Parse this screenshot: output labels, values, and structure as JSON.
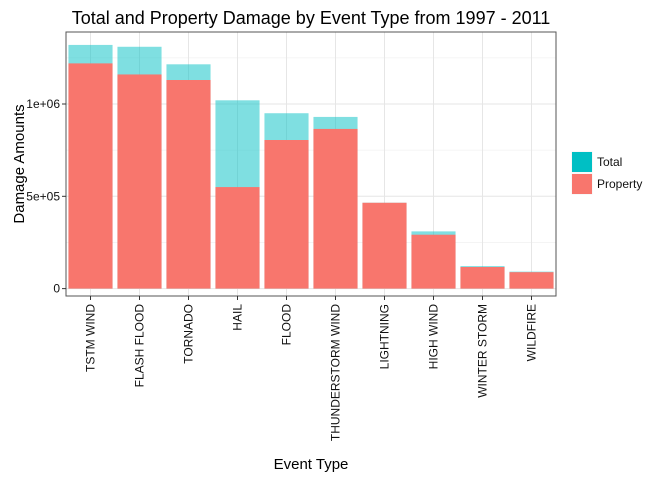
{
  "chart_data": {
    "type": "bar",
    "title": "Total and Property Damage by Event Type from 1997 - 2011",
    "xlabel": "Event Type",
    "ylabel": "Damage Amounts",
    "categories": [
      "TSTM WIND",
      "FLASH FLOOD",
      "TORNADO",
      "HAIL",
      "FLOOD",
      "THUNDERSTORM WIND",
      "LIGHTNING",
      "HIGH WIND",
      "WINTER STORM",
      "WILDFIRE"
    ],
    "series": [
      {
        "name": "Total",
        "color": "#00BFC4",
        "opacity": 0.5,
        "values": [
          1320000,
          1310000,
          1215000,
          1020000,
          950000,
          930000,
          465000,
          310000,
          122000,
          92000
        ]
      },
      {
        "name": "Property",
        "color": "#F8766D",
        "opacity": 1,
        "values": [
          1220000,
          1160000,
          1130000,
          550000,
          805000,
          865000,
          465000,
          292000,
          117000,
          89000
        ]
      }
    ],
    "ylim": [
      -40000,
      1390000
    ],
    "yticks": [
      0,
      500000,
      1000000
    ],
    "ytick_labels": [
      "0",
      "5e+05",
      "1e+06"
    ],
    "grid": true,
    "legend": {
      "position": "right",
      "entries": [
        {
          "label": "Total",
          "color": "#00BFC4"
        },
        {
          "label": "Property",
          "color": "#F8766D"
        }
      ]
    }
  }
}
